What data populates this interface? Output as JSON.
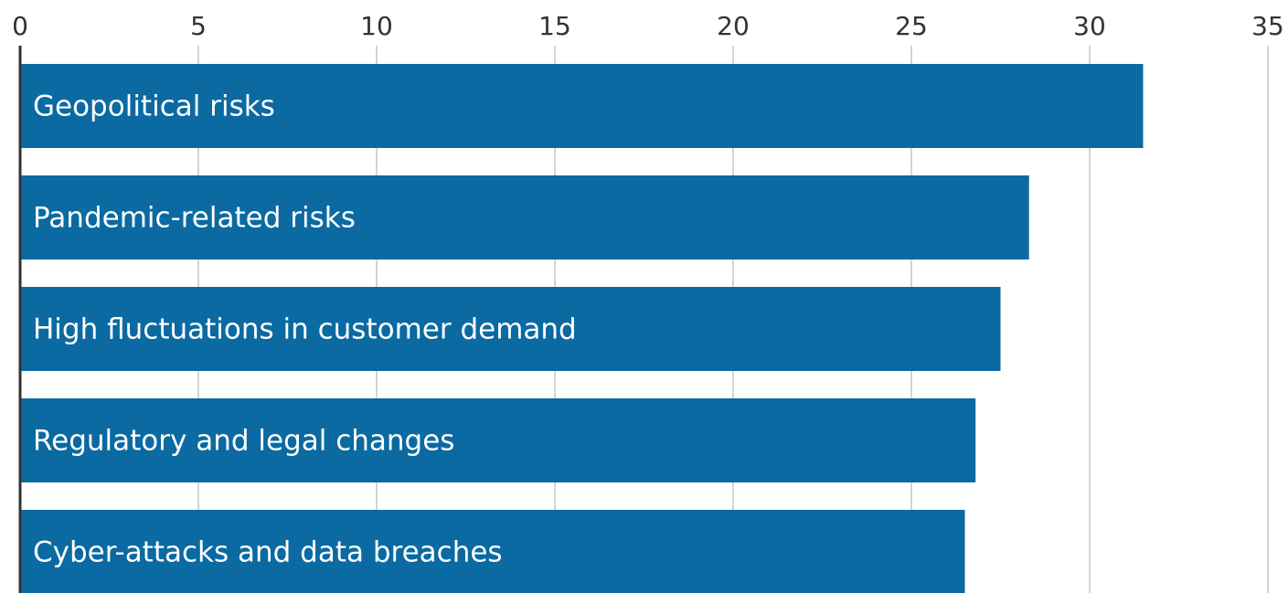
{
  "chart_data": {
    "type": "bar",
    "orientation": "horizontal",
    "categories": [
      "Geopolitical risks",
      "Pandemic-related risks",
      "High fluctuations in customer demand",
      "Regulatory and legal changes",
      "Cyber-attacks and data breaches"
    ],
    "values": [
      31.5,
      28.3,
      27.5,
      26.8,
      26.5
    ],
    "color": "#0a6aa1",
    "xlim": [
      0,
      35
    ],
    "xticks": [
      0,
      5,
      10,
      15,
      20,
      25,
      30,
      35
    ],
    "grid": true
  }
}
